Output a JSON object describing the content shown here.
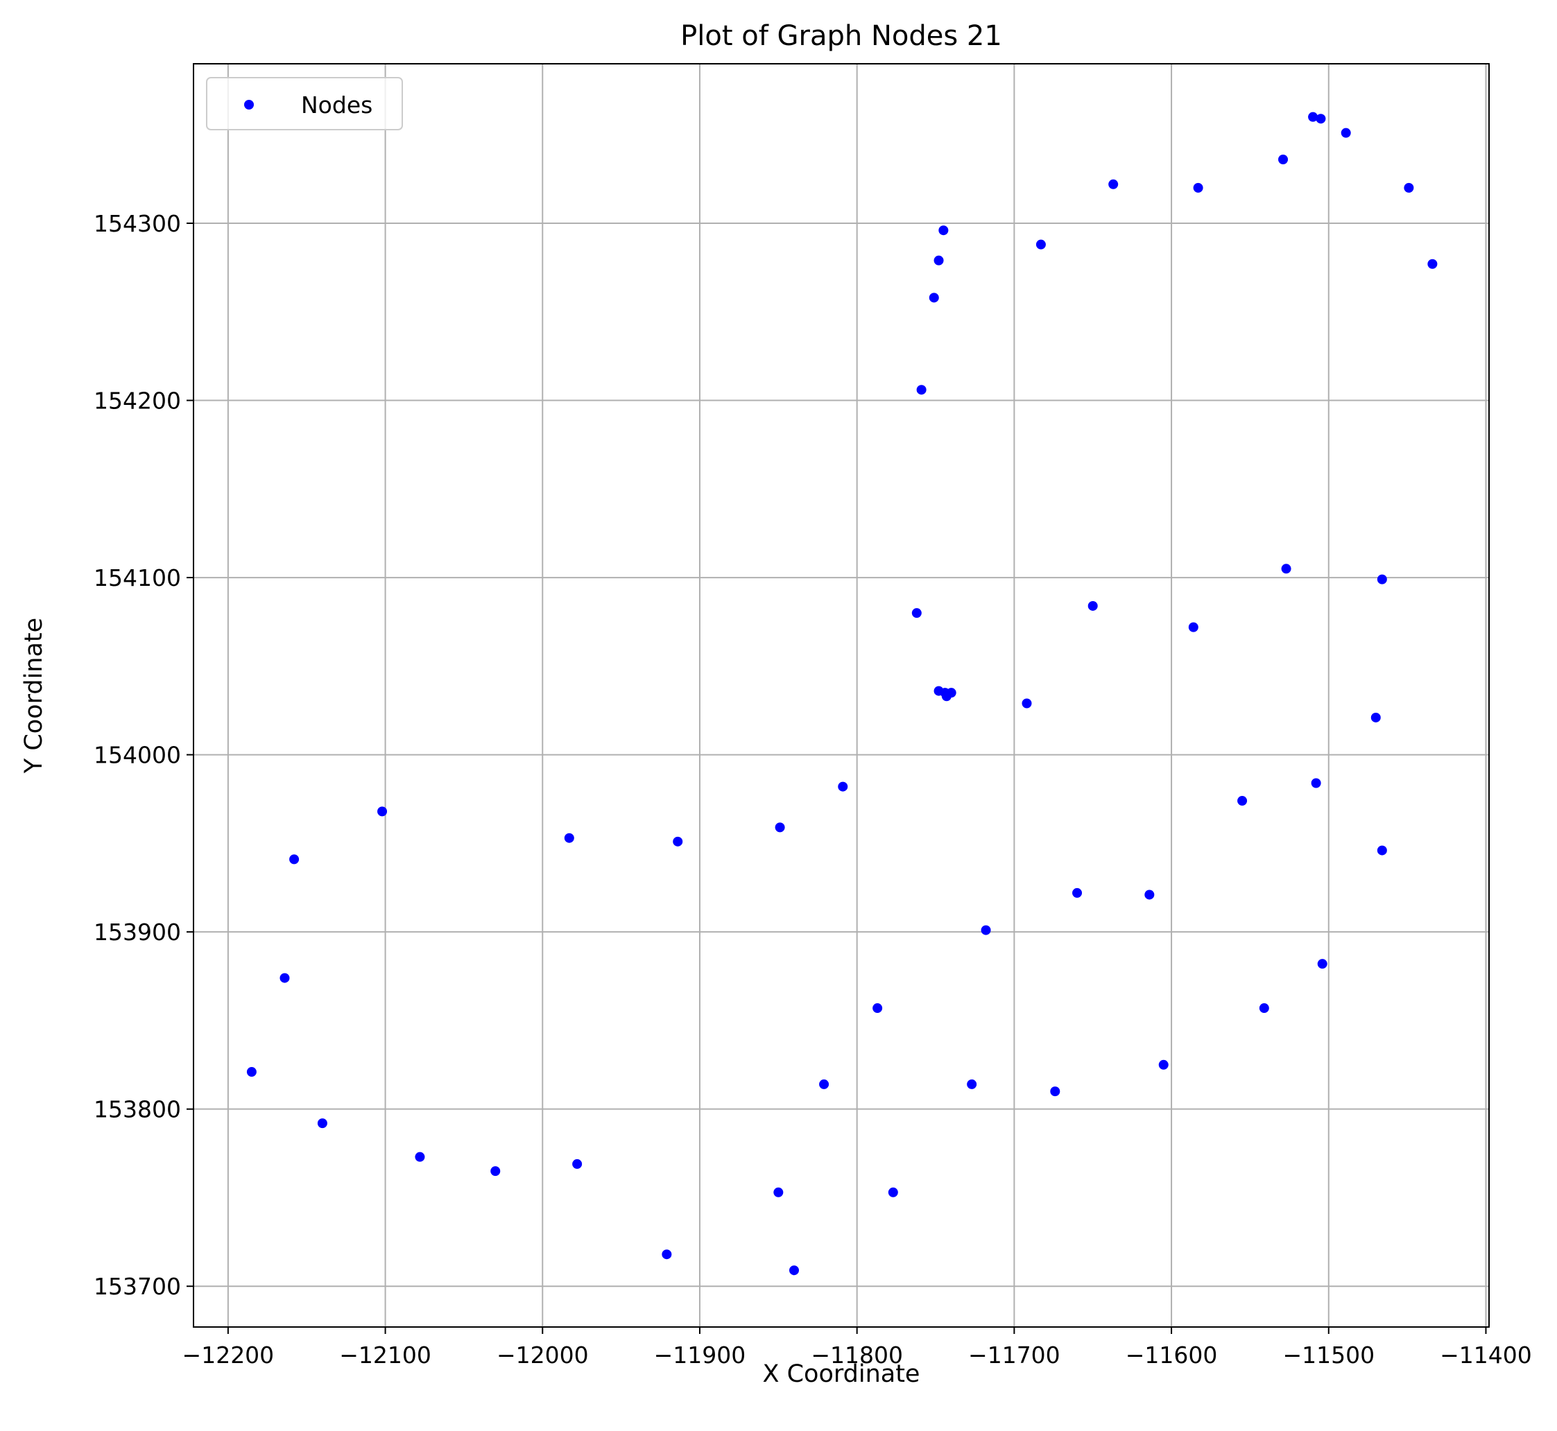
{
  "chart_data": {
    "type": "scatter",
    "title": "Plot of Graph Nodes 21",
    "xlabel": "X Coordinate",
    "ylabel": "Y Coordinate",
    "xlim": [
      -12222,
      -11398
    ],
    "ylim": [
      153677,
      154390
    ],
    "xticks": [
      -12200,
      -12100,
      -12000,
      -11900,
      -11800,
      -11700,
      -11600,
      -11500,
      -11400
    ],
    "xtick_labels": [
      "−12200",
      "−12100",
      "−12000",
      "−11900",
      "−11800",
      "−11700",
      "−11600",
      "−11500",
      "−11400"
    ],
    "yticks": [
      153700,
      153800,
      153900,
      154000,
      154100,
      154200,
      154300
    ],
    "ytick_labels": [
      "153700",
      "153800",
      "153900",
      "154000",
      "154100",
      "154200",
      "154300"
    ],
    "grid": true,
    "legend": {
      "position": "top-left",
      "entries": [
        "Nodes"
      ]
    },
    "series": [
      {
        "name": "Nodes",
        "color": "#0000ff",
        "points": [
          [
            -11510,
            154360
          ],
          [
            -11505,
            154359
          ],
          [
            -11489,
            154351
          ],
          [
            -11529,
            154336
          ],
          [
            -11637,
            154322
          ],
          [
            -11583,
            154320
          ],
          [
            -11449,
            154320
          ],
          [
            -11434,
            154277
          ],
          [
            -11745,
            154296
          ],
          [
            -11683,
            154288
          ],
          [
            -11748,
            154279
          ],
          [
            -11751,
            154258
          ],
          [
            -11759,
            154206
          ],
          [
            -11527,
            154105
          ],
          [
            -11466,
            154099
          ],
          [
            -11650,
            154084
          ],
          [
            -11586,
            154072
          ],
          [
            -11762,
            154080
          ],
          [
            -11748,
            154036
          ],
          [
            -11744,
            154035
          ],
          [
            -11740,
            154035
          ],
          [
            -11743,
            154033
          ],
          [
            -11692,
            154029
          ],
          [
            -11470,
            154021
          ],
          [
            -11508,
            153984
          ],
          [
            -11555,
            153974
          ],
          [
            -11809,
            153982
          ],
          [
            -12102,
            153968
          ],
          [
            -11849,
            153959
          ],
          [
            -11983,
            153953
          ],
          [
            -11914,
            153951
          ],
          [
            -11466,
            153946
          ],
          [
            -12158,
            153941
          ],
          [
            -11660,
            153922
          ],
          [
            -11614,
            153921
          ],
          [
            -11718,
            153901
          ],
          [
            -11504,
            153882
          ],
          [
            -12164,
            153874
          ],
          [
            -11787,
            153857
          ],
          [
            -11541,
            153857
          ],
          [
            -11605,
            153825
          ],
          [
            -12185,
            153821
          ],
          [
            -11821,
            153814
          ],
          [
            -11727,
            153814
          ],
          [
            -11674,
            153810
          ],
          [
            -12140,
            153792
          ],
          [
            -12078,
            153773
          ],
          [
            -11978,
            153769
          ],
          [
            -12030,
            153765
          ],
          [
            -11850,
            153753
          ],
          [
            -11777,
            153753
          ],
          [
            -11921,
            153718
          ],
          [
            -11840,
            153709
          ]
        ]
      }
    ]
  }
}
